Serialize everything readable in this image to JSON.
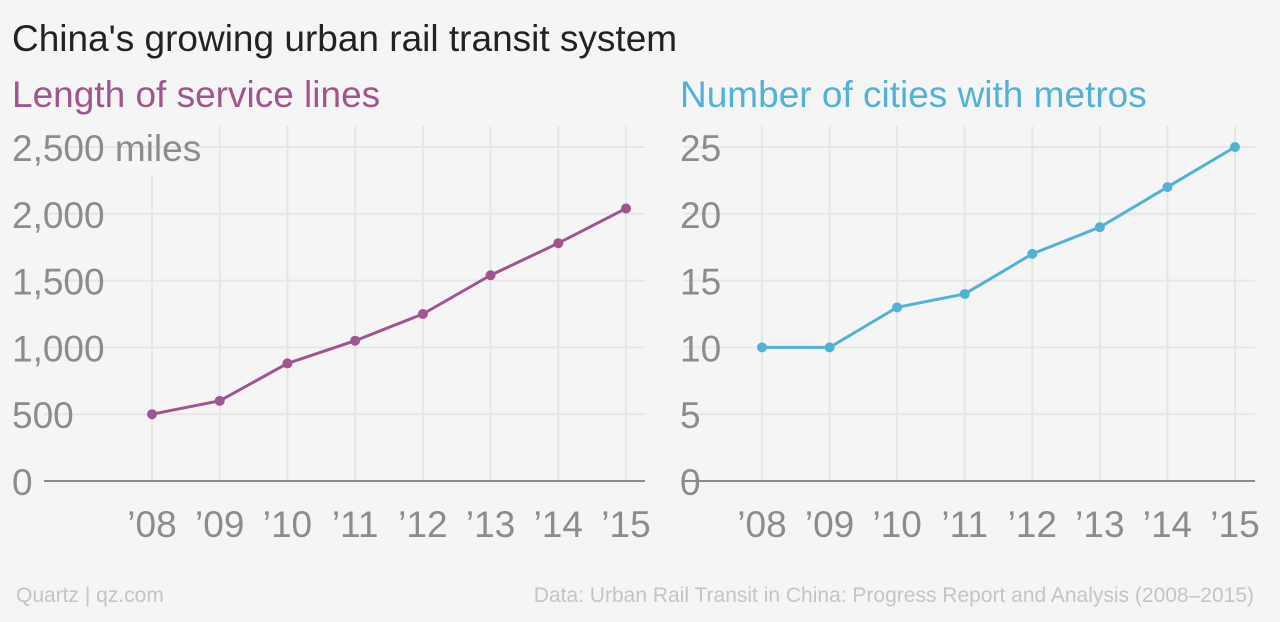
{
  "title": "China's growing urban rail transit system",
  "footer": {
    "source_left": "Quartz | qz.com",
    "source_right": "Data: Urban Rail Transit in China: Progress Report and Analysis (2008–2015)"
  },
  "colors": {
    "left_series": "#a0558f",
    "right_series": "#51b2d8",
    "grid": "#e6e6e6",
    "axis": "#8a8a8a",
    "tick_text": "#8c8c8c"
  },
  "chart_data": [
    {
      "type": "line",
      "title": "Length of service lines",
      "categories": [
        "’08",
        "’09",
        "’10",
        "’11",
        "’12",
        "’13",
        "’14",
        "’15"
      ],
      "values": [
        500,
        600,
        880,
        1050,
        1250,
        1540,
        1780,
        2040
      ],
      "ylim": [
        0,
        2500
      ],
      "yticks": [
        0,
        500,
        1000,
        1500,
        2000,
        2500
      ],
      "ytick_labels": [
        "0",
        "500",
        "1,000",
        "1,500",
        "2,000",
        "2,500 miles"
      ],
      "xlabel": "",
      "ylabel": "",
      "grid": true
    },
    {
      "type": "line",
      "title": "Number of cities with metros",
      "categories": [
        "’08",
        "’09",
        "’10",
        "’11",
        "’12",
        "’13",
        "’14",
        "’15"
      ],
      "values": [
        10,
        10,
        13,
        14,
        17,
        19,
        22,
        25
      ],
      "ylim": [
        0,
        25
      ],
      "yticks": [
        0,
        5,
        10,
        15,
        20,
        25
      ],
      "ytick_labels": [
        "0",
        "5",
        "10",
        "15",
        "20",
        "25"
      ],
      "xlabel": "",
      "ylabel": "",
      "grid": true
    }
  ]
}
